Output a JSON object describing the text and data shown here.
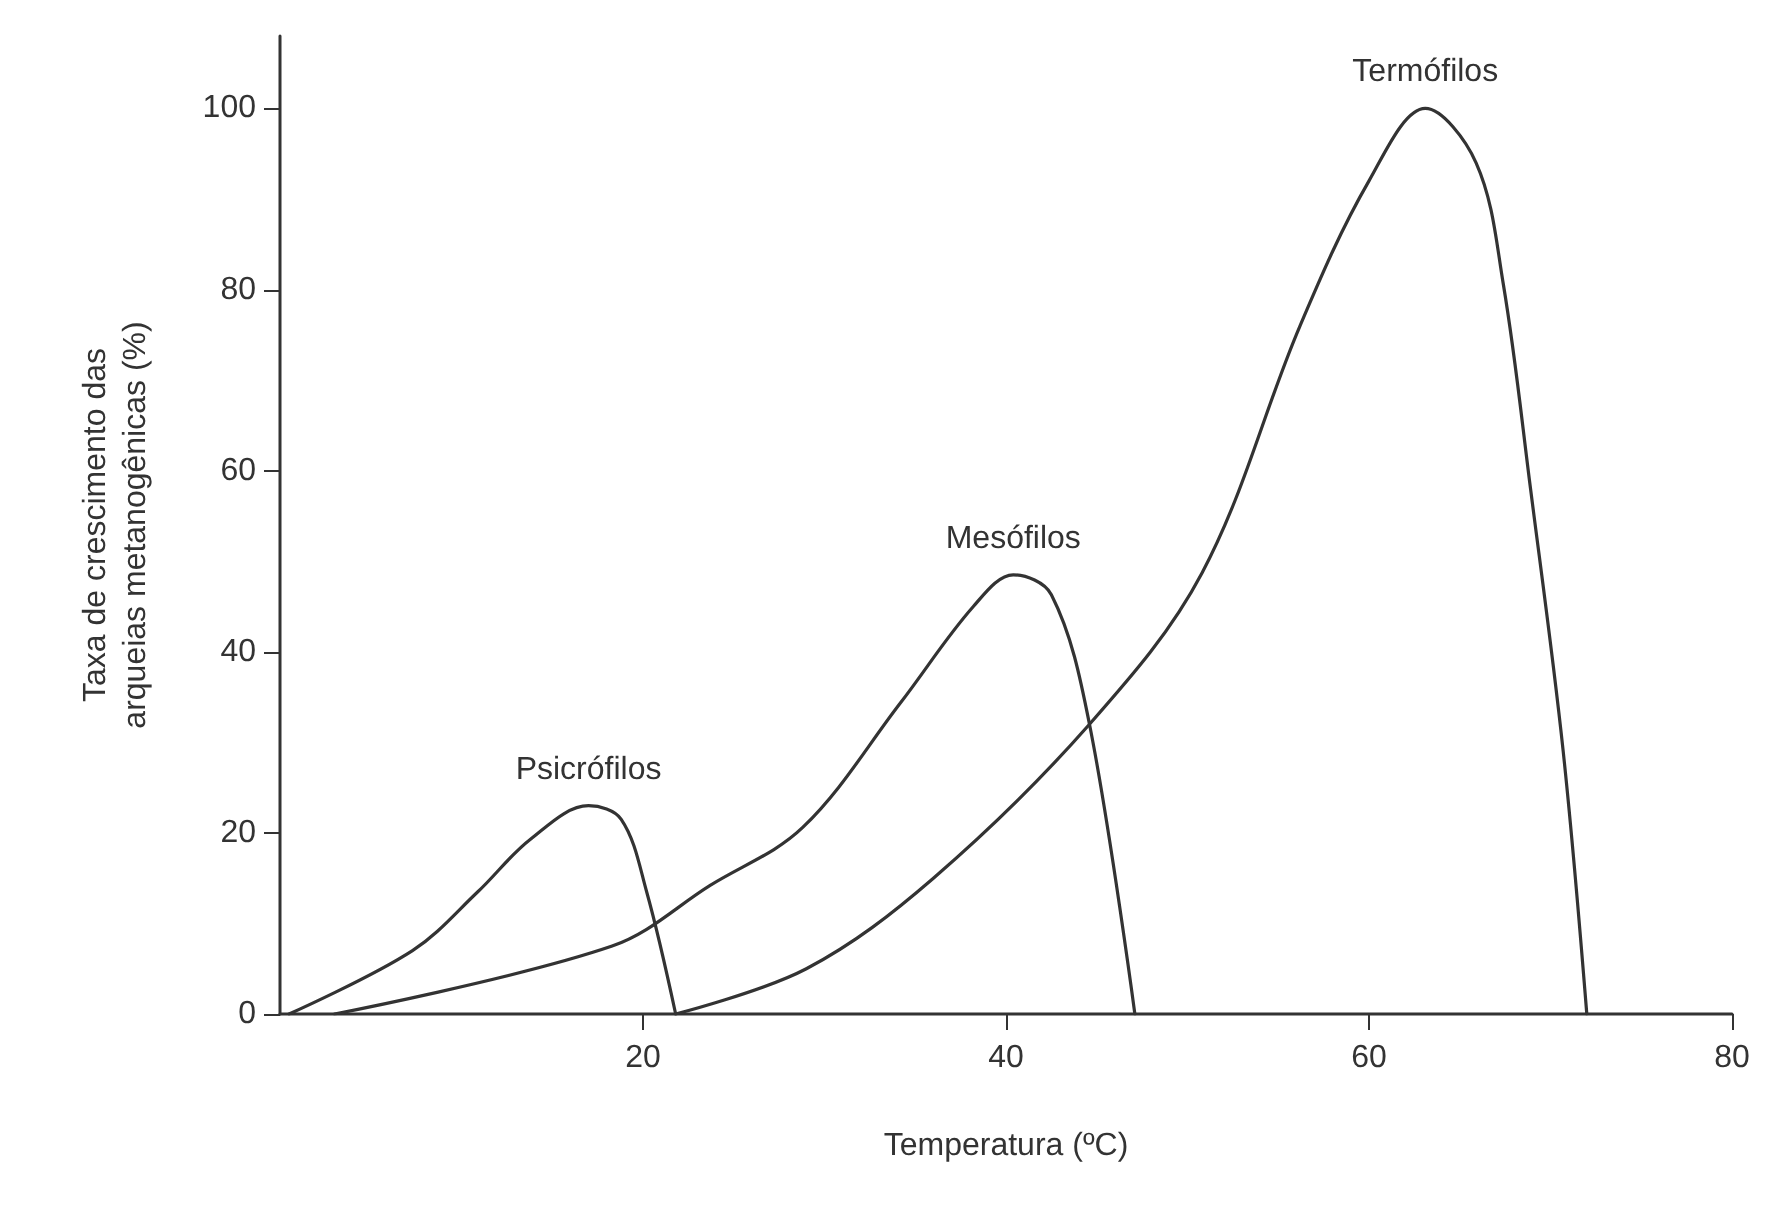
{
  "chart_data": {
    "type": "line",
    "xlabel": "Temperatura (ºC)",
    "ylabel": "Taxa de crescimento das\narqueias metanogênicas (%)",
    "xlim": [
      0,
      80
    ],
    "xticks": [
      20,
      40,
      60,
      80
    ],
    "ylim": [
      0,
      108
    ],
    "yticks": [
      0,
      20,
      40,
      60,
      80,
      100
    ],
    "grid": false,
    "legend": false,
    "marker": "none",
    "line_style": "solid",
    "series": [
      {
        "name": "Psicrófilos",
        "color": "#333333",
        "x": [
          0.5,
          7.3,
          10.9,
          13.8,
          17,
          18.8,
          20.2,
          21.8
        ],
        "values": [
          0,
          7,
          13.5,
          19.3,
          23,
          21.5,
          13.5,
          0
        ]
      },
      {
        "name": "Mesófilos",
        "color": "#333333",
        "x": [
          3,
          18.3,
          23.7,
          28.8,
          34.2,
          38.2,
          40.4,
          42.5,
          44.6,
          47.1
        ],
        "values": [
          0,
          7.5,
          14.2,
          20.6,
          34.4,
          45,
          48.5,
          46.3,
          32,
          0
        ]
      },
      {
        "name": "Termófilos",
        "color": "#333333",
        "x": [
          21.8,
          29,
          36,
          44.6,
          50.8,
          56.2,
          60,
          63.1,
          65.9,
          67.4,
          68.9,
          70.7,
          72
        ],
        "values": [
          0,
          5,
          15,
          32,
          48.7,
          76,
          92,
          100,
          94,
          80.6,
          58,
          29,
          0
        ]
      }
    ]
  }
}
